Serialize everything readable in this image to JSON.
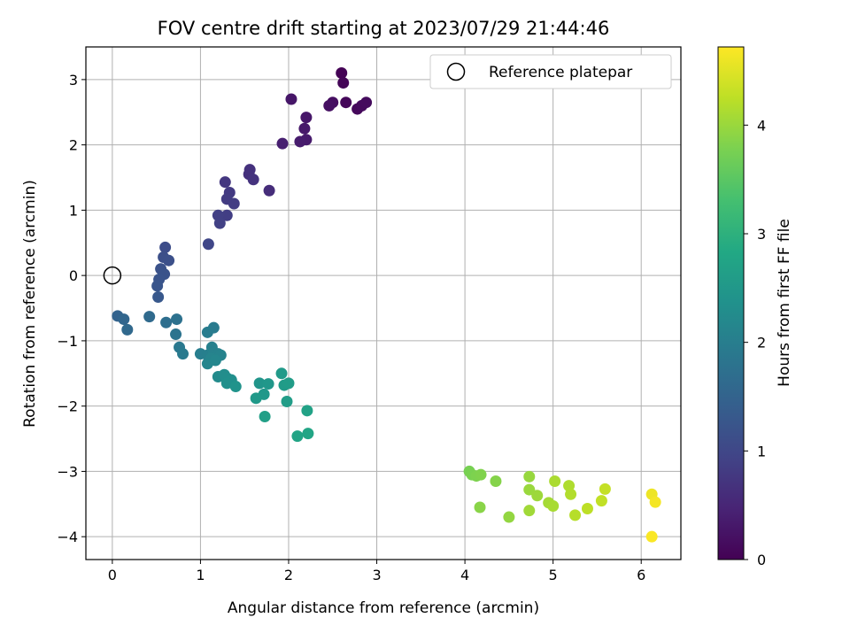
{
  "chart_data": {
    "type": "scatter",
    "title": "FOV centre drift starting at 2023/07/29 21:44:46",
    "xlabel": "Angular distance from reference (arcmin)",
    "ylabel": "Rotation from reference (arcmin)",
    "xlim": [
      -0.3,
      6.45
    ],
    "ylim": [
      -4.35,
      3.5
    ],
    "xticks": [
      0,
      1,
      2,
      3,
      4,
      5,
      6
    ],
    "yticks": [
      -4,
      -3,
      -2,
      -1,
      0,
      1,
      2,
      3
    ],
    "grid": true,
    "legend": {
      "placement": "top-right",
      "entries": [
        "Reference platepar"
      ]
    },
    "reference_point": {
      "x": 0,
      "y": 0,
      "label": "Reference platepar"
    },
    "colorbar": {
      "label": "Hours from first FF file",
      "colormap": "viridis",
      "range": [
        0,
        4.72
      ],
      "ticks": [
        0,
        1,
        2,
        3,
        4
      ]
    },
    "series": [
      {
        "marker_color_scale": "viridis",
        "points": [
          {
            "x": 2.6,
            "y": 3.1,
            "hours": 0.02
          },
          {
            "x": 2.62,
            "y": 2.95,
            "hours": 0.05
          },
          {
            "x": 2.65,
            "y": 2.65,
            "hours": 0.08
          },
          {
            "x": 2.78,
            "y": 2.55,
            "hours": 0.1
          },
          {
            "x": 2.83,
            "y": 2.6,
            "hours": 0.12
          },
          {
            "x": 2.88,
            "y": 2.65,
            "hours": 0.13
          },
          {
            "x": 2.5,
            "y": 2.65,
            "hours": 0.18
          },
          {
            "x": 2.46,
            "y": 2.6,
            "hours": 0.2
          },
          {
            "x": 2.03,
            "y": 2.7,
            "hours": 0.28
          },
          {
            "x": 2.2,
            "y": 2.42,
            "hours": 0.3
          },
          {
            "x": 2.18,
            "y": 2.25,
            "hours": 0.32
          },
          {
            "x": 2.2,
            "y": 2.08,
            "hours": 0.34
          },
          {
            "x": 2.13,
            "y": 2.05,
            "hours": 0.36
          },
          {
            "x": 1.93,
            "y": 2.02,
            "hours": 0.4
          },
          {
            "x": 1.78,
            "y": 1.3,
            "hours": 0.6
          },
          {
            "x": 1.55,
            "y": 1.55,
            "hours": 0.65
          },
          {
            "x": 1.56,
            "y": 1.62,
            "hours": 0.67
          },
          {
            "x": 1.6,
            "y": 1.47,
            "hours": 0.7
          },
          {
            "x": 1.28,
            "y": 1.43,
            "hours": 0.75
          },
          {
            "x": 1.33,
            "y": 1.27,
            "hours": 0.8
          },
          {
            "x": 1.3,
            "y": 1.17,
            "hours": 0.82
          },
          {
            "x": 1.38,
            "y": 1.1,
            "hours": 0.84
          },
          {
            "x": 1.3,
            "y": 0.92,
            "hours": 0.86
          },
          {
            "x": 1.2,
            "y": 0.92,
            "hours": 0.88
          },
          {
            "x": 1.22,
            "y": 0.8,
            "hours": 0.9
          },
          {
            "x": 1.09,
            "y": 0.48,
            "hours": 1.0
          },
          {
            "x": 0.6,
            "y": 0.43,
            "hours": 1.1
          },
          {
            "x": 0.58,
            "y": 0.28,
            "hours": 1.13
          },
          {
            "x": 0.64,
            "y": 0.23,
            "hours": 1.15
          },
          {
            "x": 0.55,
            "y": 0.1,
            "hours": 1.18
          },
          {
            "x": 0.59,
            "y": 0.02,
            "hours": 1.2
          },
          {
            "x": 0.53,
            "y": -0.06,
            "hours": 1.22
          },
          {
            "x": 0.51,
            "y": -0.16,
            "hours": 1.24
          },
          {
            "x": 0.52,
            "y": -0.33,
            "hours": 1.3
          },
          {
            "x": 0.06,
            "y": -0.62,
            "hours": 1.5
          },
          {
            "x": 0.13,
            "y": -0.67,
            "hours": 1.55
          },
          {
            "x": 0.17,
            "y": -0.83,
            "hours": 1.6
          },
          {
            "x": 0.42,
            "y": -0.63,
            "hours": 1.62
          },
          {
            "x": 0.61,
            "y": -0.72,
            "hours": 1.7
          },
          {
            "x": 0.73,
            "y": -0.67,
            "hours": 1.75
          },
          {
            "x": 0.72,
            "y": -0.9,
            "hours": 1.8
          },
          {
            "x": 0.76,
            "y": -1.1,
            "hours": 1.88
          },
          {
            "x": 0.8,
            "y": -1.2,
            "hours": 1.92
          },
          {
            "x": 1.15,
            "y": -0.8,
            "hours": 1.95
          },
          {
            "x": 1.08,
            "y": -0.87,
            "hours": 1.97
          },
          {
            "x": 1.0,
            "y": -1.2,
            "hours": 2.0
          },
          {
            "x": 1.08,
            "y": -1.22,
            "hours": 2.02
          },
          {
            "x": 1.13,
            "y": -1.1,
            "hours": 2.04
          },
          {
            "x": 1.15,
            "y": -1.18,
            "hours": 2.06
          },
          {
            "x": 1.2,
            "y": -1.2,
            "hours": 2.08
          },
          {
            "x": 1.23,
            "y": -1.22,
            "hours": 2.1
          },
          {
            "x": 1.12,
            "y": -1.27,
            "hours": 2.12
          },
          {
            "x": 1.08,
            "y": -1.35,
            "hours": 2.14
          },
          {
            "x": 1.17,
            "y": -1.3,
            "hours": 2.16
          },
          {
            "x": 1.2,
            "y": -1.55,
            "hours": 2.25
          },
          {
            "x": 1.27,
            "y": -1.52,
            "hours": 2.28
          },
          {
            "x": 1.3,
            "y": -1.57,
            "hours": 2.3
          },
          {
            "x": 1.35,
            "y": -1.6,
            "hours": 2.33
          },
          {
            "x": 1.3,
            "y": -1.65,
            "hours": 2.35
          },
          {
            "x": 1.4,
            "y": -1.7,
            "hours": 2.4
          },
          {
            "x": 1.67,
            "y": -1.65,
            "hours": 2.45
          },
          {
            "x": 1.77,
            "y": -1.66,
            "hours": 2.48
          },
          {
            "x": 1.72,
            "y": -1.82,
            "hours": 2.5
          },
          {
            "x": 1.63,
            "y": -1.88,
            "hours": 2.52
          },
          {
            "x": 1.92,
            "y": -1.5,
            "hours": 2.55
          },
          {
            "x": 1.95,
            "y": -1.68,
            "hours": 2.57
          },
          {
            "x": 2.0,
            "y": -1.65,
            "hours": 2.58
          },
          {
            "x": 1.98,
            "y": -1.93,
            "hours": 2.6
          },
          {
            "x": 1.73,
            "y": -2.16,
            "hours": 2.65
          },
          {
            "x": 2.21,
            "y": -2.07,
            "hours": 2.7
          },
          {
            "x": 2.1,
            "y": -2.46,
            "hours": 2.75
          },
          {
            "x": 2.22,
            "y": -2.42,
            "hours": 2.77
          },
          {
            "x": 4.05,
            "y": -3.0,
            "hours": 3.75
          },
          {
            "x": 4.08,
            "y": -3.05,
            "hours": 3.77
          },
          {
            "x": 4.13,
            "y": -3.07,
            "hours": 3.8
          },
          {
            "x": 4.18,
            "y": -3.05,
            "hours": 3.82
          },
          {
            "x": 4.35,
            "y": -3.15,
            "hours": 3.85
          },
          {
            "x": 4.17,
            "y": -3.55,
            "hours": 3.88
          },
          {
            "x": 4.5,
            "y": -3.7,
            "hours": 3.95
          },
          {
            "x": 4.73,
            "y": -3.08,
            "hours": 3.98
          },
          {
            "x": 4.73,
            "y": -3.28,
            "hours": 4.0
          },
          {
            "x": 4.82,
            "y": -3.37,
            "hours": 4.02
          },
          {
            "x": 4.73,
            "y": -3.6,
            "hours": 4.05
          },
          {
            "x": 4.95,
            "y": -3.48,
            "hours": 4.08
          },
          {
            "x": 5.0,
            "y": -3.53,
            "hours": 4.1
          },
          {
            "x": 5.02,
            "y": -3.15,
            "hours": 4.12
          },
          {
            "x": 5.18,
            "y": -3.22,
            "hours": 4.15
          },
          {
            "x": 5.2,
            "y": -3.35,
            "hours": 4.17
          },
          {
            "x": 5.25,
            "y": -3.67,
            "hours": 4.2
          },
          {
            "x": 5.39,
            "y": -3.57,
            "hours": 4.25
          },
          {
            "x": 5.55,
            "y": -3.45,
            "hours": 4.28
          },
          {
            "x": 5.59,
            "y": -3.27,
            "hours": 4.3
          },
          {
            "x": 6.12,
            "y": -3.35,
            "hours": 4.6
          },
          {
            "x": 6.16,
            "y": -3.47,
            "hours": 4.65
          },
          {
            "x": 6.12,
            "y": -4.0,
            "hours": 4.7
          }
        ]
      }
    ]
  }
}
